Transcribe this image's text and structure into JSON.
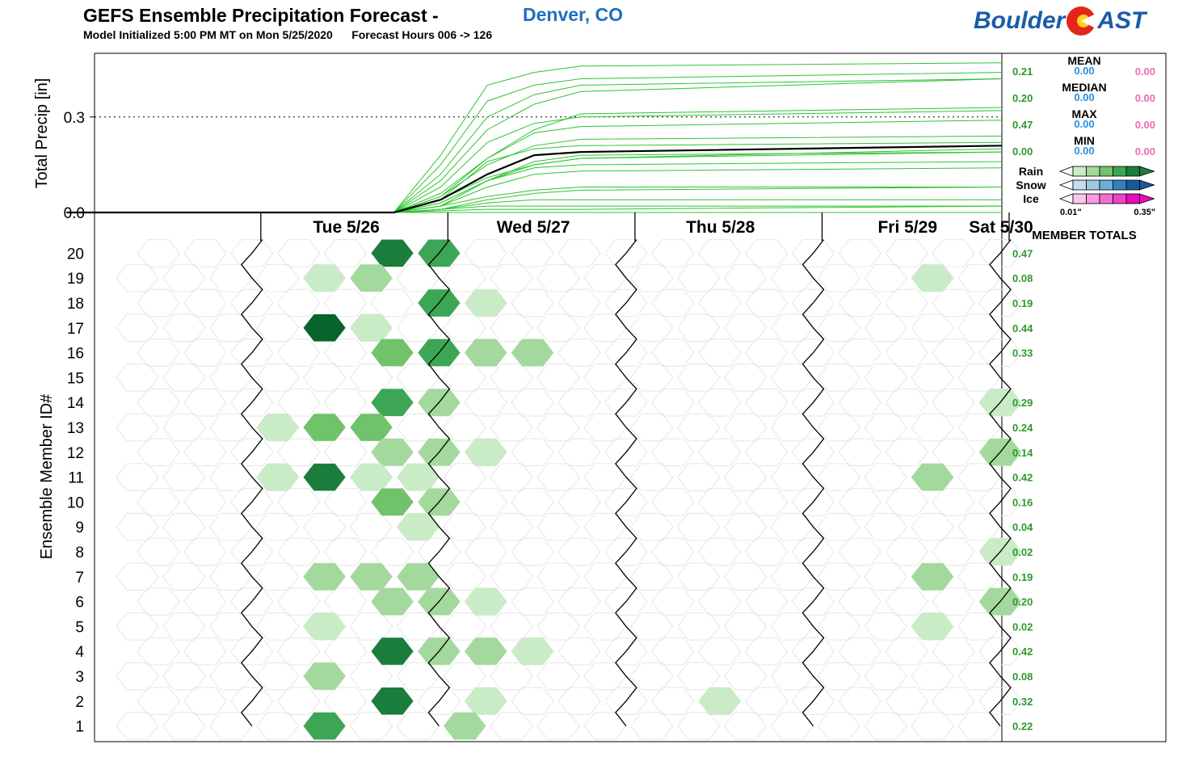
{
  "header": {
    "title": "GEFS Ensemble Precipitation Forecast -",
    "city": "Denver, CO",
    "init_label": "Model Initialized 5:00 PM MT on Mon 5/25/2020",
    "forecast_label": "Forecast Hours 006 -> 126",
    "logo_left": "Boulder",
    "logo_right": "AST"
  },
  "chart_data": {
    "type": "line",
    "top_panel": {
      "ylabel": "Total Precip [in]",
      "yticks": [
        "0.3",
        "0.0"
      ],
      "ylim": [
        0,
        0.5
      ],
      "dotted_reference": 0.3,
      "x_days": [
        "Tue 5/26",
        "Wed 5/27",
        "Thu 5/28",
        "Fri 5/29",
        "Sat 5/30"
      ],
      "xlim_hours": [
        6,
        126
      ],
      "x_hours": [
        6,
        30,
        48,
        54,
        60,
        66,
        72,
        126
      ],
      "member_curves": [
        [
          0,
          0,
          0,
          0.04,
          0.16,
          0.2,
          0.21,
          0.22
        ],
        [
          0,
          0,
          0,
          0.08,
          0.22,
          0.28,
          0.3,
          0.32
        ],
        [
          0,
          0,
          0,
          0.02,
          0.05,
          0.07,
          0.08,
          0.08
        ],
        [
          0,
          0,
          0,
          0.1,
          0.26,
          0.34,
          0.38,
          0.42
        ],
        [
          0,
          0,
          0,
          0.01,
          0.02,
          0.02,
          0.02,
          0.02
        ],
        [
          0,
          0,
          0,
          0.03,
          0.1,
          0.15,
          0.17,
          0.2
        ],
        [
          0,
          0,
          0,
          0.04,
          0.11,
          0.15,
          0.17,
          0.19
        ],
        [
          0,
          0,
          0,
          0.005,
          0.01,
          0.01,
          0.01,
          0.02
        ],
        [
          0,
          0,
          0,
          0.01,
          0.03,
          0.04,
          0.04,
          0.04
        ],
        [
          0,
          0,
          0,
          0.03,
          0.1,
          0.14,
          0.15,
          0.16
        ],
        [
          0,
          0,
          0,
          0.12,
          0.3,
          0.37,
          0.4,
          0.42
        ],
        [
          0,
          0,
          0,
          0.02,
          0.08,
          0.12,
          0.13,
          0.14
        ],
        [
          0,
          0,
          0,
          0.05,
          0.15,
          0.21,
          0.23,
          0.24
        ],
        [
          0,
          0,
          0,
          0.06,
          0.17,
          0.25,
          0.27,
          0.29
        ],
        [
          0,
          0,
          0,
          0,
          0,
          0,
          0,
          0
        ],
        [
          0,
          0,
          0,
          0.05,
          0.17,
          0.26,
          0.31,
          0.33
        ],
        [
          0,
          0,
          0,
          0.15,
          0.35,
          0.4,
          0.42,
          0.44
        ],
        [
          0,
          0,
          0,
          0.02,
          0.1,
          0.16,
          0.18,
          0.19
        ],
        [
          0,
          0,
          0,
          0.01,
          0.04,
          0.06,
          0.07,
          0.08
        ],
        [
          0,
          0,
          0,
          0.18,
          0.4,
          0.44,
          0.46,
          0.47
        ]
      ],
      "mean_curve": [
        0,
        0,
        0,
        0.04,
        0.12,
        0.18,
        0.19,
        0.21
      ]
    },
    "legend": {
      "stats": [
        {
          "name": "MEAN",
          "rain": "0.21",
          "snow": "0.00",
          "ice": "0.00"
        },
        {
          "name": "MEDIAN",
          "rain": "0.20",
          "snow": "0.00",
          "ice": "0.00"
        },
        {
          "name": "MAX",
          "rain": "0.47",
          "snow": "0.00",
          "ice": "0.00"
        },
        {
          "name": "MIN",
          "rain": "0.00",
          "snow": "0.00",
          "ice": "0.00"
        }
      ],
      "scale_labels": [
        "Rain",
        "Snow",
        "Ice"
      ],
      "scale_min": "0.01\"",
      "scale_max": "0.35\"",
      "rain_colors": [
        "#ffffff",
        "#c9ebc5",
        "#a3d99c",
        "#70c26b",
        "#3ca655",
        "#1a7d3c"
      ],
      "snow_colors": [
        "#ffffff",
        "#c6dbef",
        "#9ecae1",
        "#6baed6",
        "#3182bd",
        "#175a9c"
      ],
      "ice_colors": [
        "#ffffff",
        "#fbc6ee",
        "#f79ae0",
        "#f26fd2",
        "#ee44c6",
        "#e60cb8"
      ],
      "member_totals_title": "MEMBER TOTALS"
    },
    "bottom_panel": {
      "ylabel": "Ensemble Member ID#",
      "member_ids": [
        "20",
        "19",
        "18",
        "17",
        "16",
        "15",
        "14",
        "13",
        "12",
        "11",
        "10",
        "9",
        "8",
        "7",
        "6",
        "5",
        "4",
        "3",
        "2",
        "1"
      ],
      "member_totals": [
        "0.47",
        "0.08",
        "0.19",
        "0.44",
        "0.33",
        "",
        "0.29",
        "0.24",
        "0.14",
        "0.42",
        "0.16",
        "0.04",
        "0.02",
        "0.19",
        "0.20",
        "0.02",
        "0.42",
        "0.08",
        "0.32",
        "0.22"
      ],
      "six_hour_precip": [
        {
          "member": 20,
          "values": [
            [
              48,
              0.29
            ],
            [
              54,
              0.24
            ]
          ]
        },
        {
          "member": 19,
          "values": [
            [
              42,
              0.02
            ],
            [
              48,
              0.06
            ],
            [
              120,
              0.02
            ]
          ]
        },
        {
          "member": 18,
          "values": [
            [
              54,
              0.17
            ],
            [
              60,
              0.02
            ]
          ]
        },
        {
          "member": 17,
          "values": [
            [
              42,
              0.35
            ],
            [
              48,
              0.03
            ]
          ]
        },
        {
          "member": 16,
          "values": [
            [
              48,
              0.08
            ],
            [
              54,
              0.18
            ],
            [
              60,
              0.06
            ],
            [
              66,
              0.06
            ]
          ]
        },
        {
          "member": 14,
          "values": [
            [
              48,
              0.2
            ],
            [
              54,
              0.07
            ],
            [
              126,
              0.02
            ]
          ]
        },
        {
          "member": 13,
          "values": [
            [
              36,
              0.02
            ],
            [
              42,
              0.12
            ],
            [
              48,
              0.1
            ]
          ]
        },
        {
          "member": 12,
          "values": [
            [
              48,
              0.06
            ],
            [
              54,
              0.05
            ],
            [
              60,
              0.02
            ],
            [
              126,
              0.05
            ]
          ]
        },
        {
          "member": 11,
          "values": [
            [
              36,
              0.02
            ],
            [
              42,
              0.3
            ],
            [
              48,
              0.03
            ],
            [
              54,
              0.03
            ],
            [
              120,
              0.05
            ]
          ]
        },
        {
          "member": 10,
          "values": [
            [
              48,
              0.08
            ],
            [
              54,
              0.07
            ]
          ]
        },
        {
          "member": 9,
          "values": [
            [
              54,
              0.03
            ]
          ]
        },
        {
          "member": 8,
          "values": [
            [
              126,
              0.02
            ]
          ]
        },
        {
          "member": 7,
          "values": [
            [
              42,
              0.06
            ],
            [
              48,
              0.06
            ],
            [
              54,
              0.06
            ],
            [
              120,
              0.06
            ]
          ]
        },
        {
          "member": 6,
          "values": [
            [
              48,
              0.06
            ],
            [
              54,
              0.06
            ],
            [
              60,
              0.02
            ],
            [
              126,
              0.06
            ]
          ]
        },
        {
          "member": 5,
          "values": [
            [
              42,
              0.02
            ],
            [
              120,
              0.02
            ]
          ]
        },
        {
          "member": 4,
          "values": [
            [
              48,
              0.3
            ],
            [
              54,
              0.06
            ],
            [
              60,
              0.06
            ],
            [
              66,
              0.02
            ]
          ]
        },
        {
          "member": 3,
          "values": [
            [
              42,
              0.07
            ]
          ]
        },
        {
          "member": 2,
          "values": [
            [
              48,
              0.3
            ],
            [
              60,
              0.02
            ],
            [
              90,
              0.02
            ]
          ]
        },
        {
          "member": 1,
          "values": [
            [
              42,
              0.18
            ],
            [
              60,
              0.06
            ]
          ]
        }
      ]
    }
  }
}
